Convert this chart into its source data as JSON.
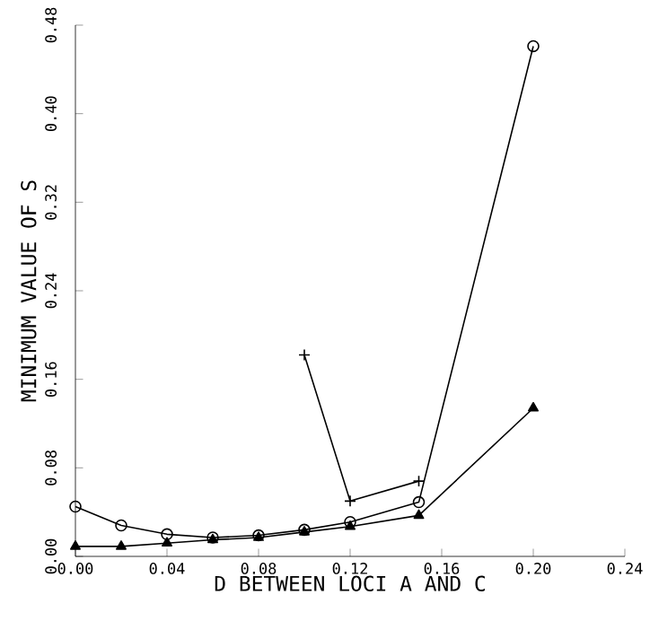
{
  "chart_data": {
    "type": "line",
    "xlabel": "D BETWEEN LOCI A AND C",
    "ylabel": "MINIMUM VALUE OF S",
    "xlim": [
      0,
      0.24
    ],
    "ylim": [
      0,
      0.48
    ],
    "xticks": [
      {
        "value": 0,
        "label": "0.00"
      },
      {
        "value": 0.04,
        "label": "0.04"
      },
      {
        "value": 0.08,
        "label": "0.08"
      },
      {
        "value": 0.12,
        "label": "0.12"
      },
      {
        "value": 0.16,
        "label": "0.16"
      },
      {
        "value": 0.2,
        "label": "0.20"
      },
      {
        "value": 0.24,
        "label": "0.24"
      }
    ],
    "yticks": [
      {
        "value": 0,
        "label": "0.00"
      },
      {
        "value": 0.08,
        "label": "0.08"
      },
      {
        "value": 0.16,
        "label": "0.16"
      },
      {
        "value": 0.24,
        "label": "0.24"
      },
      {
        "value": 0.32,
        "label": "0.32"
      },
      {
        "value": 0.4,
        "label": "0.40"
      },
      {
        "value": 0.48,
        "label": "0.48"
      }
    ],
    "grid": false,
    "series": [
      {
        "color": "#000000",
        "marker": "circle",
        "x": [
          0,
          0.02,
          0.04,
          0.06,
          0.08,
          0.1,
          0.12,
          0.15,
          0.2
        ],
        "values": [
          0.045,
          0.028,
          0.02,
          0.017,
          0.019,
          0.024,
          0.031,
          0.049,
          0.461
        ]
      },
      {
        "color": "#000000",
        "marker": "triangle",
        "x": [
          0,
          0.02,
          0.04,
          0.06,
          0.08,
          0.1,
          0.12,
          0.15,
          0.2
        ],
        "values": [
          0.009,
          0.009,
          0.012,
          0.015,
          0.017,
          0.022,
          0.027,
          0.037,
          0.134
        ]
      },
      {
        "color": "#000000",
        "marker": "cross",
        "x": [
          0.1,
          0.12,
          0.15
        ],
        "values": [
          0.182,
          0.05,
          0.068
        ]
      }
    ]
  }
}
